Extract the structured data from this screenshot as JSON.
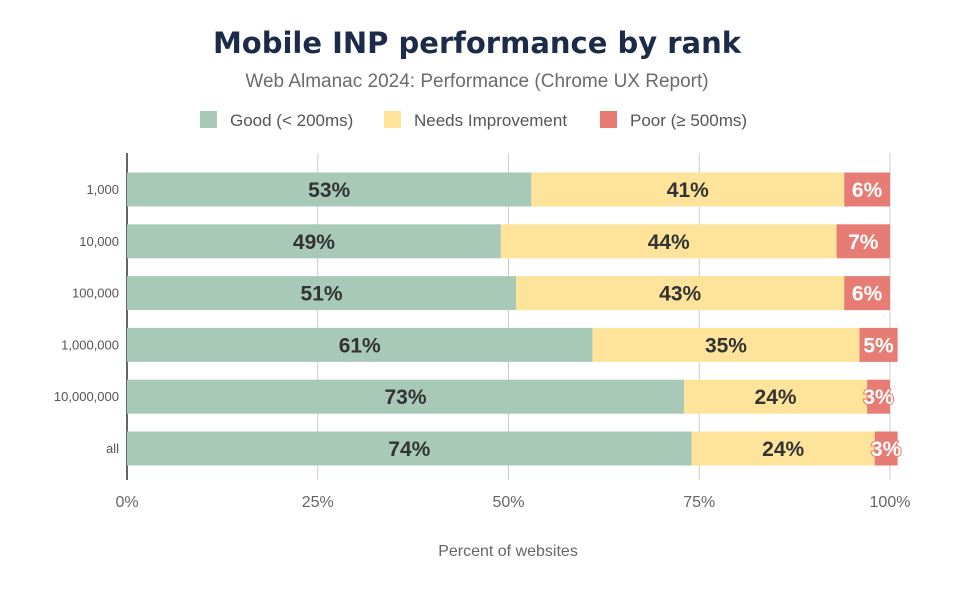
{
  "chart_data": {
    "type": "bar",
    "orientation": "horizontal",
    "stacked": true,
    "title": "Mobile INP performance by rank",
    "subtitle": "Web Almanac 2024: Performance (Chrome UX Report)",
    "xlabel": "Percent of websites",
    "ylabel": "",
    "xlim": [
      0,
      100
    ],
    "x_ticks": [
      "0%",
      "25%",
      "50%",
      "75%",
      "100%"
    ],
    "grid": true,
    "legend_position": "top",
    "categories": [
      "1,000",
      "10,000",
      "100,000",
      "1,000,000",
      "10,000,000",
      "all"
    ],
    "series": [
      {
        "name": "Good (< 200ms)",
        "color": "#a8c9b8",
        "values": [
          53,
          49,
          51,
          61,
          73,
          74
        ]
      },
      {
        "name": "Needs Improvement",
        "color": "#fde49a",
        "values": [
          41,
          44,
          43,
          35,
          24,
          24
        ]
      },
      {
        "name": "Poor (≥ 500ms)",
        "color": "#e67c73",
        "values": [
          6,
          7,
          6,
          5,
          3,
          3
        ]
      }
    ],
    "value_label_suffix": "%"
  }
}
